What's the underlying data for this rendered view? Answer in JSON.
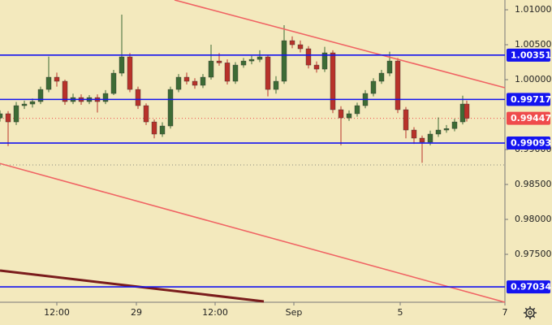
{
  "chart_data": {
    "type": "candlestick",
    "background": "#f3e9bd",
    "up_color": "#3d6b35",
    "down_color": "#b8322a",
    "xlim": [
      0,
      124.4
    ],
    "ylim": [
      0.96814,
      1.0114
    ],
    "xticks": [
      {
        "value": 14,
        "label": "12:00"
      },
      {
        "value": 33.6,
        "label": "29"
      },
      {
        "value": 53,
        "label": "12:00"
      },
      {
        "value": 72.4,
        "label": "Sep"
      },
      {
        "value": 98.6,
        "label": "5"
      },
      {
        "value": 124.4,
        "label": "7"
      }
    ],
    "yticks": [
      {
        "value": 1.01,
        "label": "1.01000"
      },
      {
        "value": 1.005,
        "label": "1.00500"
      },
      {
        "value": 1.0,
        "label": "1.00000"
      },
      {
        "value": 0.99,
        "label": "0.99000"
      },
      {
        "value": 0.985,
        "label": "0.98500"
      },
      {
        "value": 0.98,
        "label": "0.98000"
      },
      {
        "value": 0.975,
        "label": "0.97500"
      }
    ],
    "x": [
      0,
      2,
      4,
      6,
      8,
      10,
      12,
      14,
      16,
      18,
      20,
      22,
      24,
      26,
      28,
      30,
      32,
      34,
      36,
      38,
      40,
      42,
      44,
      46,
      48,
      50,
      52,
      54,
      56,
      58,
      60,
      62,
      64,
      66,
      68,
      70,
      72,
      74,
      76,
      78,
      80,
      82,
      84,
      86,
      88,
      90,
      92,
      94,
      96,
      98,
      100,
      102,
      104,
      106,
      108,
      110,
      112,
      114,
      115
    ],
    "open": [
      0.9945,
      0.99512,
      0.99395,
      0.99628,
      0.99651,
      0.99686,
      0.9986,
      1.00035,
      0.99977,
      0.99686,
      0.99744,
      0.99686,
      0.99744,
      0.99686,
      0.99802,
      1.00093,
      1.00326,
      0.9986,
      0.99628,
      0.99395,
      0.99221,
      0.99337,
      0.9986,
      1.00035,
      0.99977,
      0.99919,
      1.00035,
      1.00267,
      1.0024,
      0.99977,
      1.00209,
      1.00267,
      1.0029,
      1.00326,
      0.9986,
      0.99977,
      1.00558,
      1.005,
      1.00442,
      1.00209,
      1.00151,
      1.00384,
      0.9957,
      0.99453,
      0.99512,
      0.99628,
      0.99802,
      0.99977,
      1.00093,
      1.00267,
      0.9957,
      0.99279,
      0.99163,
      0.99105,
      0.99221,
      0.99279,
      0.993,
      0.99395,
      0.99651
    ],
    "high": [
      0.9956,
      0.9955,
      0.9968,
      0.997,
      0.9973,
      0.999,
      1.0033,
      1.001,
      1.0,
      0.998,
      0.9979,
      0.9978,
      0.9979,
      0.9985,
      1.0014,
      1.0093,
      1.0038,
      0.999,
      0.9966,
      0.9943,
      0.9939,
      0.999,
      1.0008,
      1.001,
      1.0002,
      1.0008,
      1.005,
      1.0038,
      1.0029,
      1.0025,
      1.0031,
      1.0034,
      1.0042,
      1.0036,
      1.0005,
      1.0078,
      1.0062,
      1.0056,
      1.0048,
      1.0026,
      1.0047,
      1.0042,
      0.9962,
      0.9956,
      0.9967,
      0.9985,
      1.0002,
      1.0014,
      1.004,
      1.0031,
      0.9961,
      0.9932,
      0.992,
      0.9927,
      0.9946,
      0.9935,
      0.9944,
      0.9977,
      0.997
    ],
    "low": [
      0.994,
      0.9905,
      0.9935,
      0.9958,
      0.996,
      0.9965,
      0.9982,
      0.999,
      0.9964,
      0.9965,
      0.9964,
      0.9965,
      0.9953,
      0.9965,
      0.9978,
      1.0005,
      0.9982,
      0.9958,
      0.9935,
      0.9916,
      0.9918,
      0.993,
      0.9982,
      0.9993,
      0.9987,
      0.9988,
      1.0,
      1.002,
      0.9993,
      0.9994,
      1.0017,
      1.0022,
      1.0025,
      0.9976,
      0.998,
      0.9994,
      1.0045,
      1.0039,
      1.0016,
      1.001,
      1.0011,
      0.9952,
      0.9906,
      0.9941,
      0.9947,
      0.9959,
      0.9976,
      0.9994,
      1.0005,
      0.9952,
      0.9916,
      0.9908,
      0.9881,
      0.9906,
      0.9918,
      0.9924,
      0.9926,
      0.9936,
      0.994
    ],
    "close": [
      0.99512,
      0.99395,
      0.99628,
      0.99651,
      0.99686,
      0.9986,
      1.00035,
      0.99977,
      0.99686,
      0.99744,
      0.99686,
      0.99744,
      0.99686,
      0.99802,
      1.00093,
      1.00326,
      0.9986,
      0.99628,
      0.99395,
      0.99221,
      0.99337,
      0.9986,
      1.00035,
      0.99977,
      0.99919,
      1.00035,
      1.00267,
      1.0024,
      0.99977,
      1.00209,
      1.00267,
      1.0029,
      1.00326,
      0.9986,
      0.99977,
      1.00558,
      1.005,
      1.00442,
      1.00209,
      1.00151,
      1.00384,
      0.9957,
      0.99453,
      0.99512,
      0.99628,
      0.99802,
      0.99977,
      1.00093,
      1.00267,
      0.9957,
      0.99279,
      0.99163,
      0.99105,
      0.99221,
      0.99279,
      0.993,
      0.99395,
      0.99651,
      0.99447
    ],
    "levels": [
      {
        "value": 1.00351,
        "label": "1.00351"
      },
      {
        "value": 0.99717,
        "label": "0.99717"
      },
      {
        "value": 0.99093,
        "label": "0.99093"
      },
      {
        "value": 0.97034,
        "label": "0.97034"
      }
    ],
    "level_color": "#1414f0",
    "last_price": {
      "value": 0.99447,
      "label": "0.99447",
      "color": "#ef4b4b"
    },
    "reference_lines": [
      {
        "value": 0.98779,
        "color": "#8a8a80"
      }
    ],
    "trend_lines": [
      {
        "x": [
          43,
          124.4
        ],
        "y": [
          1.0114,
          0.99884
        ],
        "color": "#f06464",
        "width": 1.6
      },
      {
        "x": [
          0,
          124.4
        ],
        "y": [
          0.988,
          0.96814
        ],
        "color": "#f06464",
        "width": 1.6
      },
      {
        "x": [
          0,
          65
        ],
        "y": [
          0.97267,
          0.96826
        ],
        "color": "#7a1c1c",
        "width": 3
      }
    ]
  }
}
